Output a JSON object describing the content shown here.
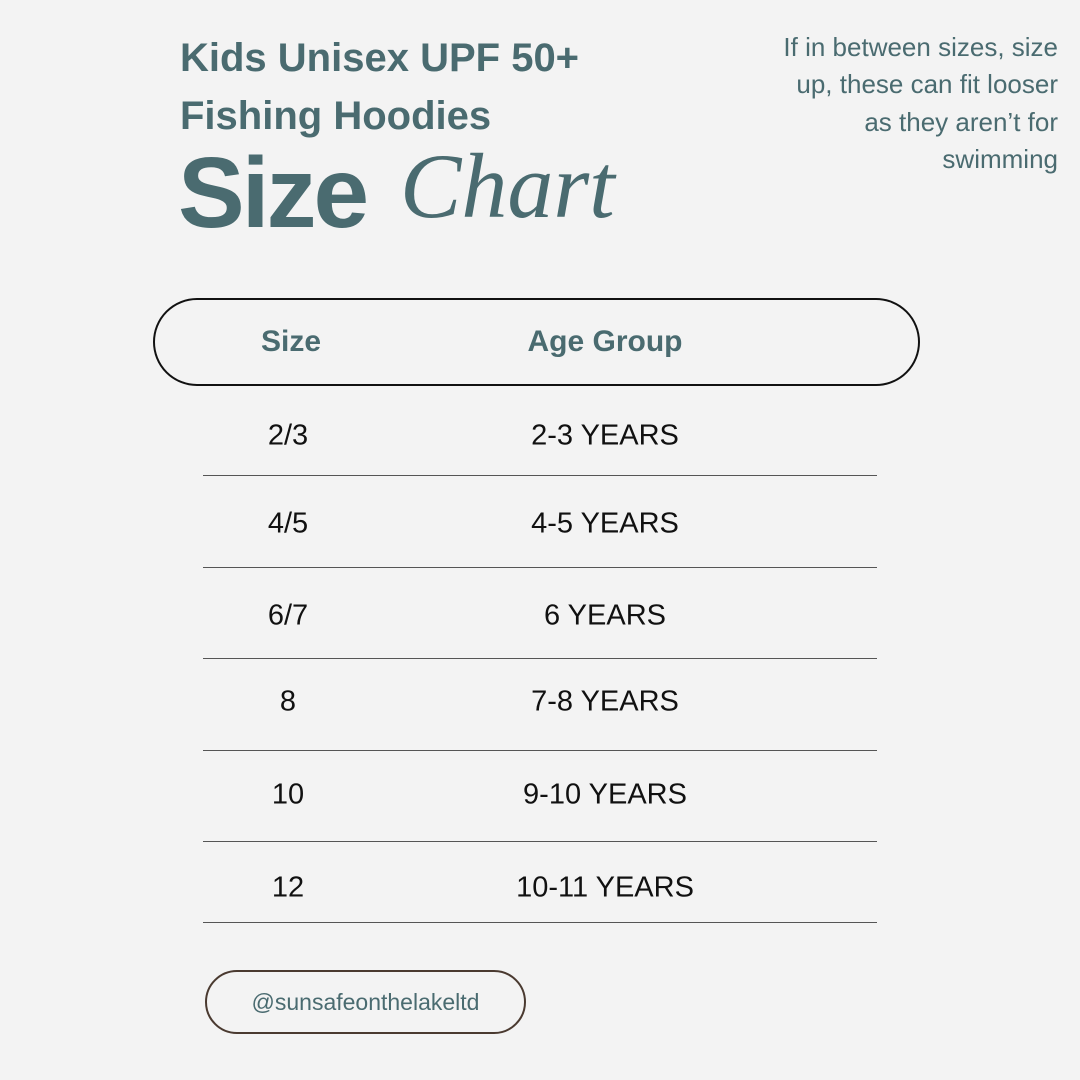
{
  "header": {
    "title_lines": [
      "Kids Unisex UPF 50+",
      "Fishing Hoodies"
    ],
    "size_word": "Size",
    "chart_word": "Chart"
  },
  "note": {
    "lines": [
      "If in between sizes, size",
      "up, these can fit looser",
      "as they aren’t for",
      "swimming"
    ]
  },
  "table": {
    "columns": [
      "Size",
      "Age Group"
    ],
    "rows": [
      [
        "2/3",
        "2-3 YEARS"
      ],
      [
        "4/5",
        "4-5 YEARS"
      ],
      [
        "6/7",
        "6 YEARS"
      ],
      [
        "8",
        "7-8 YEARS"
      ],
      [
        "10",
        "9-10 YEARS"
      ],
      [
        "12",
        "10-11 YEARS"
      ]
    ]
  },
  "footer": {
    "handle": "@sunsafeonthelakeltd"
  }
}
